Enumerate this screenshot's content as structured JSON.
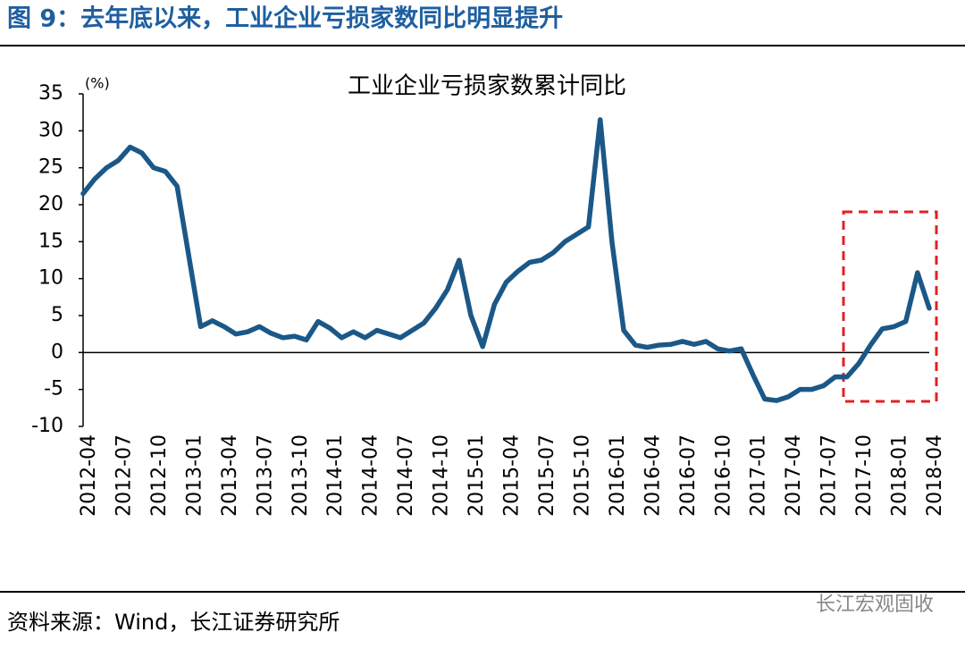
{
  "header": {
    "title": "图 9：去年底以来，工业企业亏损家数同比明显提升"
  },
  "chart_data": {
    "type": "line",
    "title": "工业企业亏损家数累计同比",
    "y_unit": "(%)",
    "categories": [
      "2012-04",
      null,
      null,
      "2012-07",
      null,
      null,
      "2012-10",
      null,
      null,
      "2013-01",
      null,
      null,
      "2013-04",
      null,
      null,
      "2013-07",
      null,
      null,
      "2013-10",
      null,
      null,
      "2014-01",
      null,
      null,
      "2014-04",
      null,
      null,
      "2014-07",
      null,
      null,
      "2014-10",
      null,
      null,
      "2015-01",
      null,
      null,
      "2015-04",
      null,
      null,
      "2015-07",
      null,
      null,
      "2015-10",
      null,
      null,
      "2016-01",
      null,
      null,
      "2016-04",
      null,
      null,
      "2016-07",
      null,
      null,
      "2016-10",
      null,
      null,
      "2017-01",
      null,
      null,
      "2017-04",
      null,
      null,
      "2017-07",
      null,
      null,
      "2017-10",
      null,
      null,
      "2018-01",
      null,
      null,
      "2018-04"
    ],
    "series": [
      {
        "name": "工业企业亏损家数累计同比",
        "color": "#1b5887",
        "values": [
          21.5,
          23.5,
          25,
          26,
          27.8,
          27,
          25,
          24.5,
          22.5,
          13,
          3.5,
          4.3,
          3.5,
          2.5,
          2.8,
          3.5,
          2.6,
          2,
          2.2,
          1.7,
          4.2,
          3.3,
          2,
          2.8,
          2,
          3,
          2.5,
          2,
          3,
          4,
          6,
          8.5,
          12.5,
          5,
          0.8,
          6.5,
          9.5,
          11,
          12.2,
          12.5,
          13.5,
          15,
          16,
          17,
          31.5,
          15,
          3,
          1,
          0.7,
          1,
          1.1,
          1.5,
          1.1,
          1.5,
          0.5,
          0.2,
          0.5,
          -3,
          -6.3,
          -6.5,
          -6,
          -5,
          -5,
          -4.5,
          -3.3,
          -3.3,
          -1.5,
          1,
          3.2,
          3.5,
          4.2,
          10.8,
          6
        ]
      }
    ],
    "ylim": [
      -10,
      35
    ],
    "yticks": [
      -10,
      -5,
      0,
      5,
      10,
      15,
      20,
      25,
      30,
      35
    ]
  },
  "footer": {
    "source": "资料来源：Wind，长江证券研究所",
    "watermark": "长江宏观固收"
  }
}
